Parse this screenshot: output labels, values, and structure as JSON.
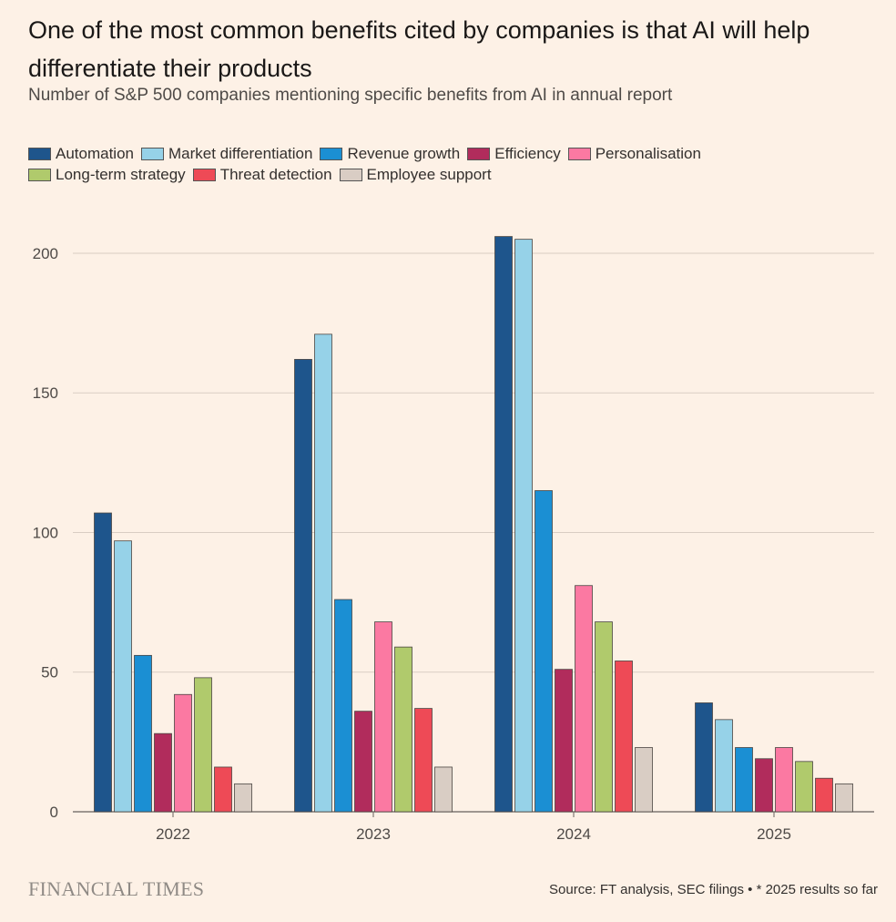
{
  "header": {
    "title": "One of the most common benefits cited by companies is that AI will help differentiate their products",
    "subtitle": "Number of S&P 500 companies mentioning specific benefits from AI in annual report"
  },
  "footer": {
    "logo": "FINANCIAL TIMES",
    "source": "Source: FT analysis, SEC filings • * 2025 results so far"
  },
  "chart_data": {
    "type": "bar",
    "title": "One of the most common benefits cited by companies is that AI will help differentiate their products",
    "subtitle": "Number of S&P 500 companies mentioning specific benefits from AI in annual report",
    "xlabel": "",
    "ylabel": "",
    "ylim": [
      0,
      215
    ],
    "yticks": [
      0,
      50,
      100,
      150,
      200
    ],
    "grid": true,
    "legend_position": "top",
    "categories": [
      "2022",
      "2023",
      "2024",
      "2025"
    ],
    "series": [
      {
        "name": "Automation",
        "color": "#1e558c",
        "values": [
          107,
          162,
          206,
          39
        ]
      },
      {
        "name": "Market differentiation",
        "color": "#96d2e8",
        "values": [
          97,
          171,
          205,
          33
        ]
      },
      {
        "name": "Revenue growth",
        "color": "#1b8fd3",
        "values": [
          56,
          76,
          115,
          23
        ]
      },
      {
        "name": "Efficiency",
        "color": "#b12c5c",
        "values": [
          28,
          36,
          51,
          19
        ]
      },
      {
        "name": "Personalisation",
        "color": "#fb79a2",
        "values": [
          42,
          68,
          81,
          23
        ]
      },
      {
        "name": "Long-term strategy",
        "color": "#b0ca6c",
        "values": [
          48,
          59,
          68,
          18
        ]
      },
      {
        "name": "Threat detection",
        "color": "#ee4a56",
        "values": [
          16,
          37,
          54,
          12
        ]
      },
      {
        "name": "Employee support",
        "color": "#d9cdc4",
        "values": [
          10,
          16,
          23,
          10
        ]
      }
    ]
  }
}
